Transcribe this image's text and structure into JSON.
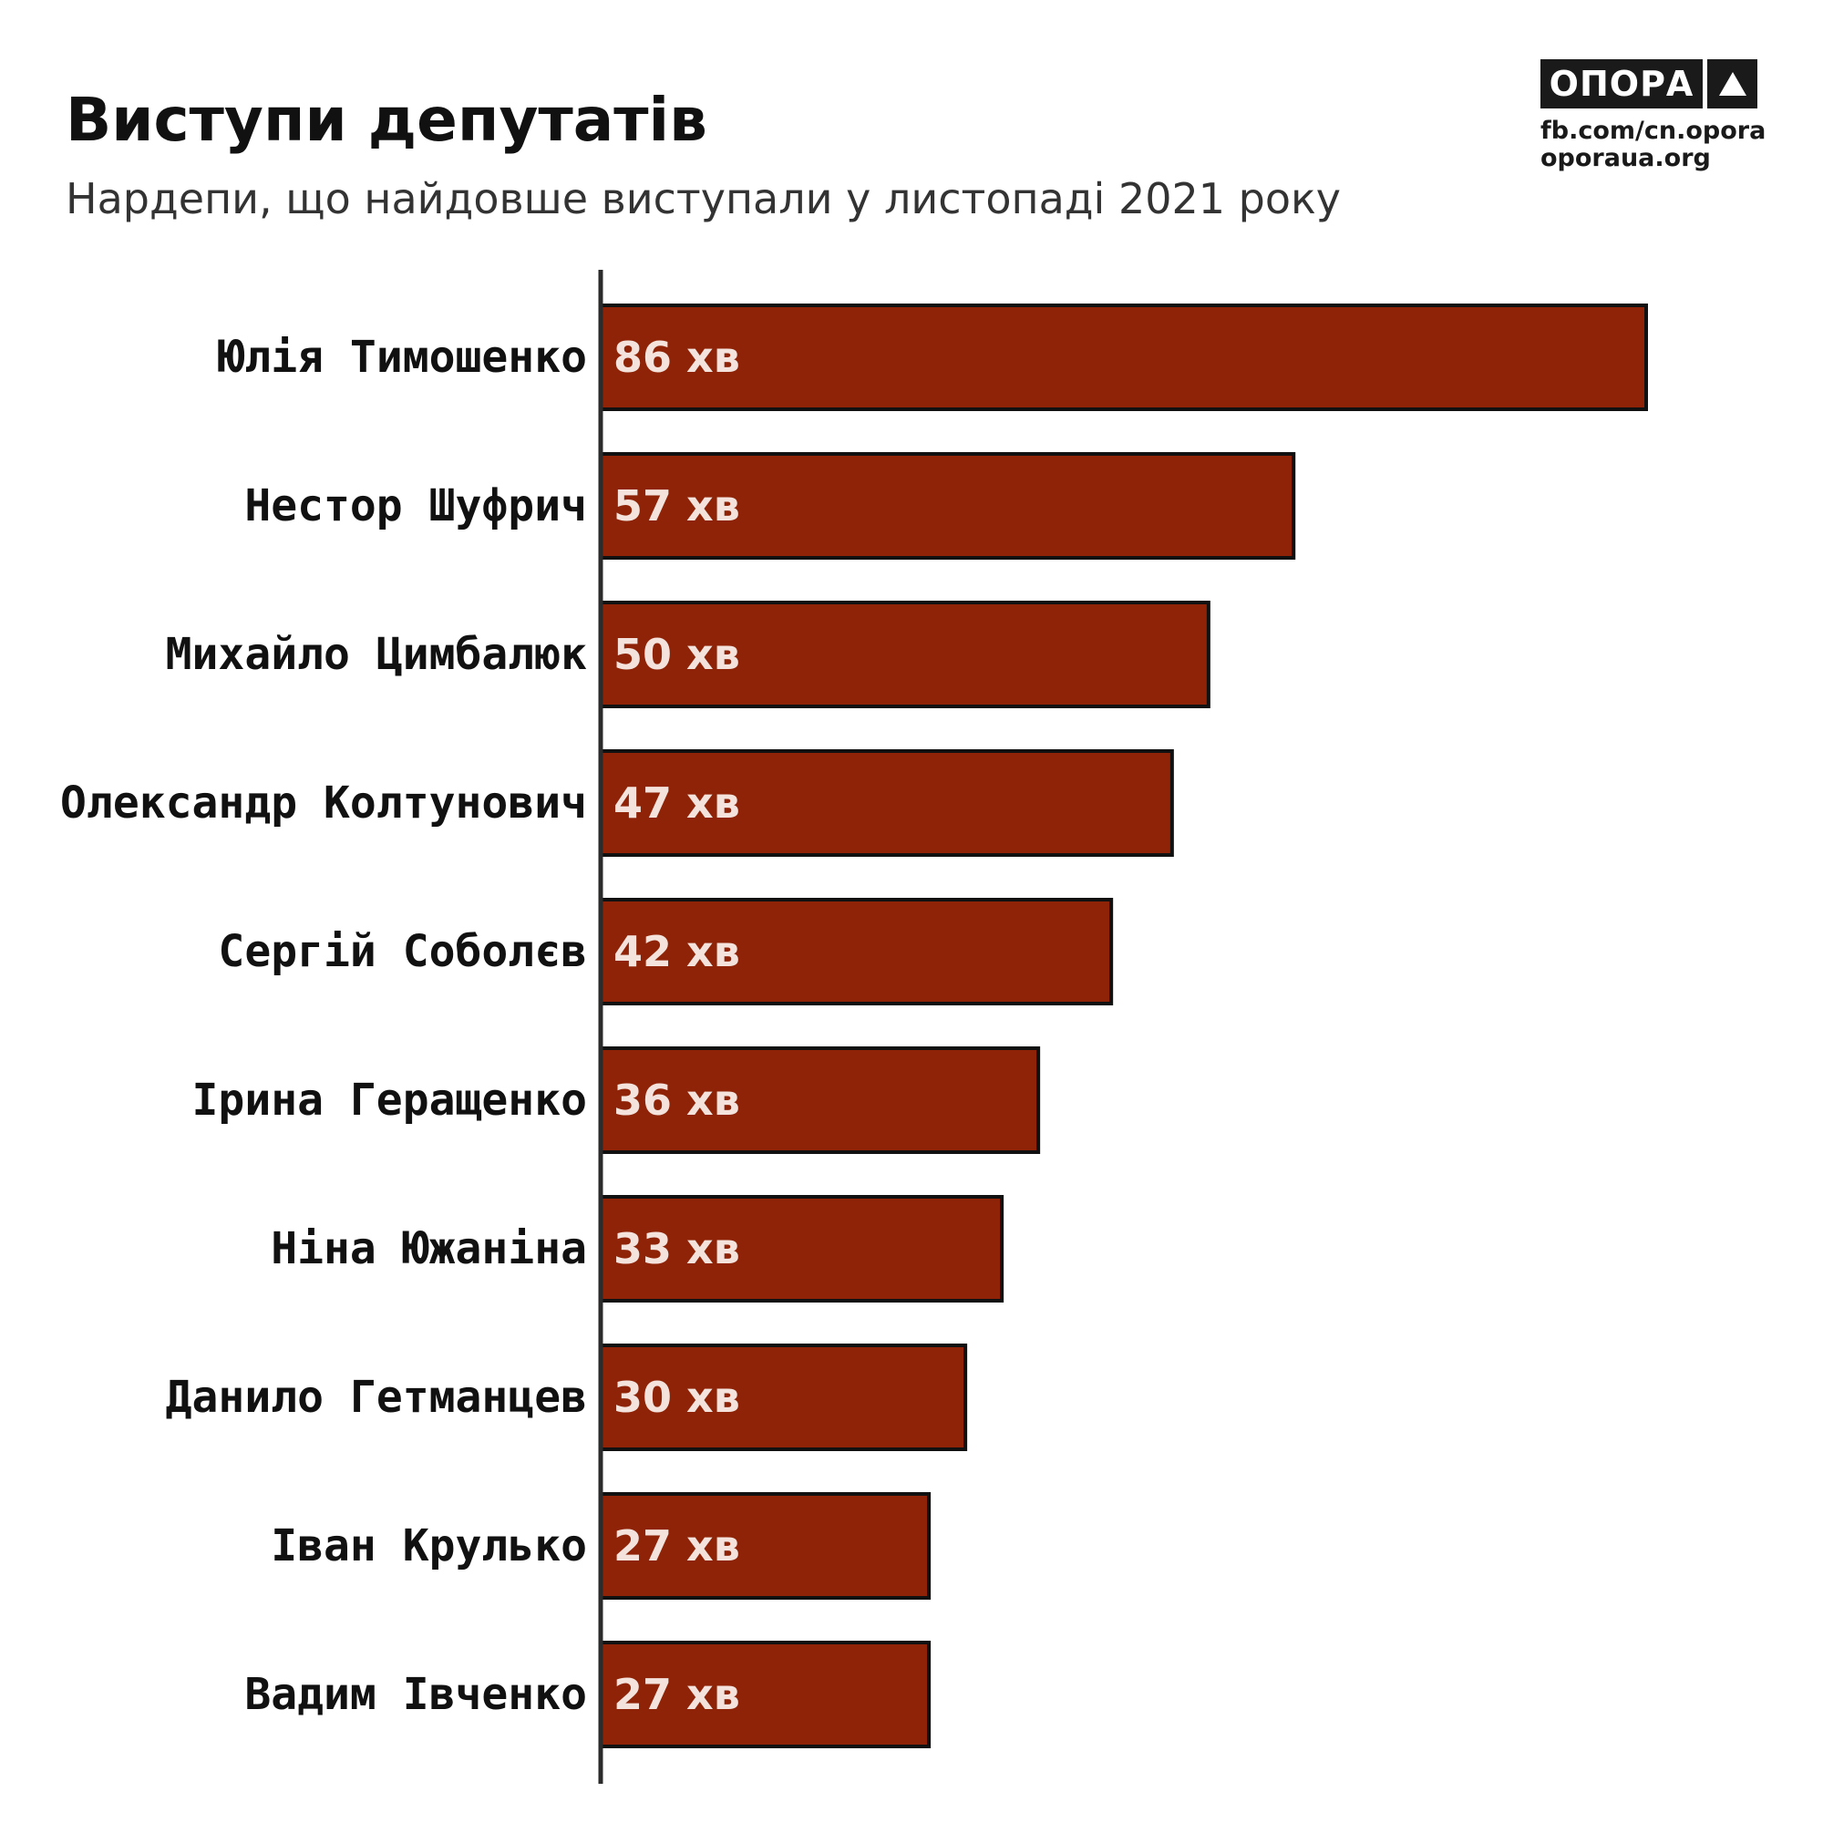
{
  "header": {
    "title": "Виступи депутатів",
    "subtitle": "Нардепи, що найдовше виступали у листопаді 2021 року"
  },
  "brand": {
    "name": "ОПОРА",
    "links": [
      "fb.com/cn.opora",
      "oporaua.org"
    ],
    "icon": "triangle-up-icon"
  },
  "colors": {
    "bar": "#8e2308",
    "bar_outline": "#111111",
    "value_text": "#f3e3dc",
    "axis": "#2b2b2b",
    "label_text": "#111111"
  },
  "chart_data": {
    "type": "bar",
    "orientation": "horizontal",
    "categories": [
      "Юлія Тимошенко",
      "Нестор Шуфрич",
      "Михайло Цимбалюк",
      "Олександр Колтунович",
      "Сергій Соболєв",
      "Ірина Геращенко",
      "Ніна Южаніна",
      "Данило Гетманцев",
      "Іван Крулько",
      "Вадим Івченко"
    ],
    "values": [
      86,
      57,
      50,
      47,
      42,
      36,
      33,
      30,
      27,
      27
    ],
    "value_labels": [
      "86 хв",
      "57 хв",
      "50 хв",
      "47 хв",
      "42 хв",
      "36 хв",
      "33 хв",
      "30 хв",
      "27 хв",
      "27 хв"
    ],
    "xlim": [
      0,
      86
    ],
    "grid": false,
    "title": "Виступи депутатів",
    "subtitle": "Нардепи, що найдовше виступали у листопаді 2021 року"
  }
}
